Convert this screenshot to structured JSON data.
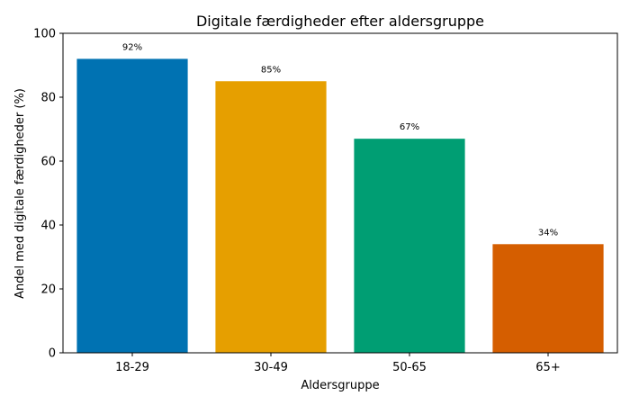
{
  "chart_data": {
    "type": "bar",
    "title": "Digitale færdigheder efter aldersgruppe",
    "xlabel": "Aldersgruppe",
    "ylabel": "Andel med digitale færdigheder (%)",
    "categories": [
      "18-29",
      "30-49",
      "50-65",
      "65+"
    ],
    "values": [
      92,
      85,
      67,
      34
    ],
    "data_labels": [
      "92%",
      "85%",
      "67%",
      "34%"
    ],
    "ylim": [
      0,
      100
    ],
    "yticks": [
      0,
      20,
      40,
      60,
      80,
      100
    ],
    "colors": [
      "#0072B2",
      "#E69F00",
      "#009E73",
      "#D55E00"
    ],
    "grid": false,
    "legend": "none"
  }
}
